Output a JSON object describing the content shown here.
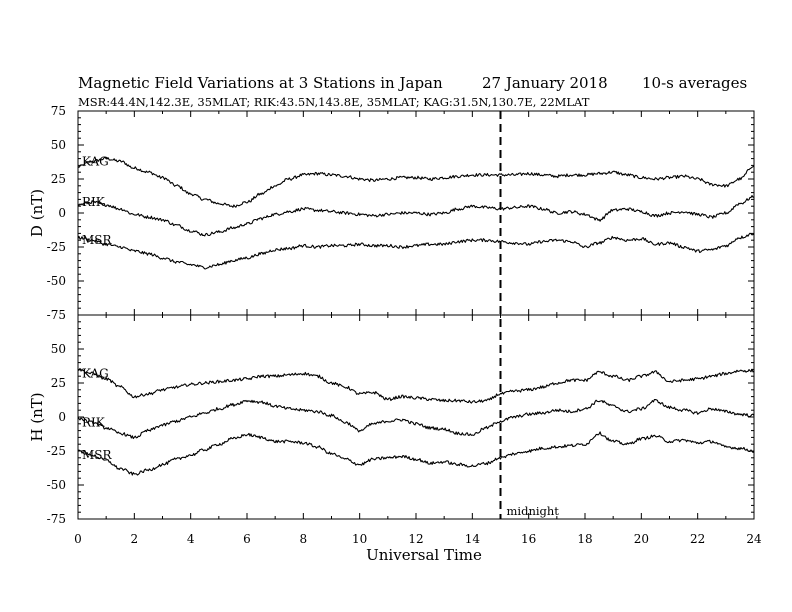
{
  "header": {
    "title": "Magnetic Field Variations at 3 Stations in Japan",
    "date": "27 January 2018",
    "averaging": "10-s averages",
    "stations_line": "MSR:44.4N,142.3E, 35MLAT;  RIK:43.5N,143.8E, 35MLAT;  KAG:31.5N,130.7E, 22MLAT"
  },
  "colors": {
    "line": "#000000",
    "background": "#ffffff"
  },
  "chart_data": [
    {
      "type": "line",
      "ylabel": "D (nT)",
      "ylim": [
        -75,
        75
      ],
      "yticks": [
        -75,
        -50,
        -25,
        0,
        25,
        50,
        75
      ],
      "xlim": [
        0,
        24
      ],
      "x": [
        0,
        0.5,
        1,
        1.5,
        2,
        2.5,
        3,
        3.5,
        4,
        4.5,
        5,
        5.5,
        6,
        6.5,
        7,
        7.5,
        8,
        8.5,
        9,
        9.5,
        10,
        10.5,
        11,
        11.5,
        12,
        12.5,
        13,
        13.5,
        14,
        14.5,
        15,
        15.5,
        16,
        16.5,
        17,
        17.5,
        18,
        18.5,
        19,
        19.5,
        20,
        20.5,
        21,
        21.5,
        22,
        22.5,
        23,
        23.5,
        24
      ],
      "series": [
        {
          "name": "KAG",
          "values": [
            34,
            38,
            40,
            38,
            33,
            30,
            26,
            20,
            14,
            10,
            7,
            5,
            8,
            14,
            20,
            25,
            28,
            29,
            28,
            27,
            25,
            24,
            25,
            26,
            26,
            25,
            26,
            27,
            28,
            28,
            28,
            28,
            29,
            28,
            27,
            28,
            28,
            29,
            30,
            28,
            26,
            25,
            26,
            27,
            25,
            21,
            20,
            25,
            35
          ]
        },
        {
          "name": "RIK",
          "values": [
            6,
            8,
            6,
            3,
            -1,
            -3,
            -5,
            -9,
            -13,
            -16,
            -14,
            -11,
            -8,
            -4,
            -1,
            1,
            3,
            2,
            1,
            0,
            -1,
            -2,
            -1,
            0,
            0,
            -1,
            0,
            3,
            5,
            4,
            3,
            4,
            5,
            3,
            0,
            1,
            -1,
            -5,
            2,
            3,
            1,
            -2,
            0,
            1,
            -1,
            -3,
            0,
            7,
            12
          ]
        },
        {
          "name": "MSR",
          "values": [
            -18,
            -20,
            -23,
            -25,
            -28,
            -30,
            -33,
            -36,
            -38,
            -40,
            -38,
            -35,
            -33,
            -30,
            -27,
            -26,
            -24,
            -25,
            -24,
            -24,
            -23,
            -24,
            -24,
            -25,
            -24,
            -23,
            -23,
            -21,
            -20,
            -20,
            -21,
            -22,
            -23,
            -21,
            -20,
            -21,
            -25,
            -22,
            -18,
            -20,
            -19,
            -23,
            -22,
            -25,
            -28,
            -27,
            -24,
            -18,
            -15
          ]
        }
      ]
    },
    {
      "type": "line",
      "ylabel": "H (nT)",
      "ylim": [
        -75,
        75
      ],
      "yticks": [
        -75,
        -50,
        -25,
        0,
        25,
        50,
        75
      ],
      "xlim": [
        0,
        24
      ],
      "xticks": [
        0,
        2,
        4,
        6,
        8,
        10,
        12,
        14,
        16,
        18,
        20,
        22,
        24
      ],
      "xlabel": "Universal Time",
      "x": [
        0,
        0.5,
        1,
        1.5,
        2,
        2.5,
        3,
        3.5,
        4,
        4.5,
        5,
        5.5,
        6,
        6.5,
        7,
        7.5,
        8,
        8.5,
        9,
        9.5,
        10,
        10.5,
        11,
        11.5,
        12,
        12.5,
        13,
        13.5,
        14,
        14.5,
        15,
        15.5,
        16,
        16.5,
        17,
        17.5,
        18,
        18.5,
        19,
        19.5,
        20,
        20.5,
        21,
        21.5,
        22,
        22.5,
        23,
        23.5,
        24
      ],
      "series": [
        {
          "name": "KAG",
          "values": [
            35,
            32,
            28,
            22,
            15,
            17,
            20,
            22,
            24,
            25,
            26,
            27,
            28,
            30,
            30,
            31,
            32,
            30,
            25,
            22,
            17,
            18,
            13,
            15,
            14,
            13,
            12,
            12,
            11,
            12,
            17,
            19,
            20,
            22,
            25,
            27,
            27,
            33,
            30,
            27,
            30,
            33,
            26,
            27,
            28,
            30,
            32,
            34,
            34
          ]
        },
        {
          "name": "RIK",
          "values": [
            -1,
            -4,
            -8,
            -12,
            -15,
            -10,
            -6,
            -3,
            0,
            3,
            6,
            9,
            12,
            11,
            8,
            6,
            5,
            4,
            1,
            -4,
            -10,
            -5,
            -3,
            -2,
            -5,
            -8,
            -9,
            -12,
            -13,
            -8,
            -3,
            0,
            2,
            3,
            5,
            4,
            6,
            12,
            8,
            4,
            6,
            12,
            7,
            5,
            3,
            6,
            4,
            2,
            1
          ]
        },
        {
          "name": "MSR",
          "values": [
            -25,
            -28,
            -32,
            -38,
            -42,
            -39,
            -35,
            -31,
            -28,
            -24,
            -20,
            -16,
            -13,
            -15,
            -18,
            -18,
            -19,
            -22,
            -27,
            -31,
            -35,
            -31,
            -30,
            -29,
            -31,
            -34,
            -33,
            -35,
            -36,
            -34,
            -30,
            -27,
            -25,
            -23,
            -22,
            -21,
            -20,
            -12,
            -18,
            -20,
            -16,
            -14,
            -18,
            -17,
            -19,
            -18,
            -22,
            -23,
            -25
          ]
        }
      ]
    }
  ],
  "annotations": {
    "midnight_label": "midnight",
    "midnight_x": 15
  }
}
